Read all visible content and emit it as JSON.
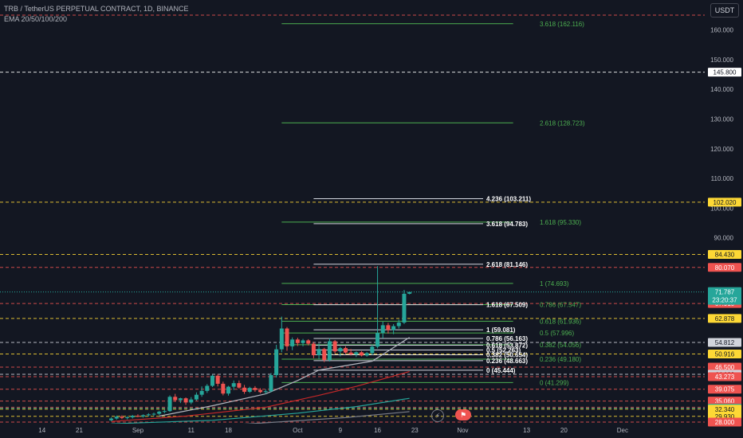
{
  "header": {
    "symbol": "TRB / TetherUS PERPETUAL CONTRACT, 1D, BINANCE",
    "indicator": "EMA 20/50/100/200"
  },
  "currency_button": "USDT",
  "icons": [
    "lightning-icon",
    "flag-icon"
  ],
  "colors": {
    "background": "#131722",
    "up": "#26a69a",
    "down": "#ef5350",
    "fib_green": "#4caf50",
    "fib_white": "#d1d4dc",
    "ema20": "#b2b5be",
    "ema50": "#c62828",
    "ema100": "#26a69a",
    "ema200": "#787b86"
  },
  "chart_data": {
    "type": "candlestick",
    "title": "TRB / TetherUS PERPETUAL CONTRACT, 1D, BINANCE",
    "x_start_date": "2023-08-10",
    "ylim": [
      28,
      165
    ],
    "y_ticks": [
      90,
      100,
      110,
      120,
      130,
      140,
      150,
      160
    ],
    "x_ticks": [
      {
        "label": "14",
        "date": "2023-08-14"
      },
      {
        "label": "21",
        "date": "2023-08-21"
      },
      {
        "label": "Sep",
        "date": "2023-09-01"
      },
      {
        "label": "11",
        "date": "2023-09-11"
      },
      {
        "label": "18",
        "date": "2023-09-18"
      },
      {
        "label": "Oct",
        "date": "2023-10-01"
      },
      {
        "label": "9",
        "date": "2023-10-09"
      },
      {
        "label": "16",
        "date": "2023-10-16"
      },
      {
        "label": "23",
        "date": "2023-10-23"
      },
      {
        "label": "Nov",
        "date": "2023-11-01"
      },
      {
        "label": "13",
        "date": "2023-11-13"
      },
      {
        "label": "20",
        "date": "2023-11-20"
      },
      {
        "label": "Dec",
        "date": "2023-12-01"
      }
    ],
    "candles": [
      {
        "date": "2023-08-27",
        "o": 28.6,
        "h": 29.6,
        "l": 28.3,
        "c": 29.2
      },
      {
        "date": "2023-08-28",
        "o": 29.2,
        "h": 30.2,
        "l": 28.8,
        "c": 29.8
      },
      {
        "date": "2023-08-29",
        "o": 29.8,
        "h": 30.3,
        "l": 29.0,
        "c": 29.4
      },
      {
        "date": "2023-08-30",
        "o": 29.4,
        "h": 30.0,
        "l": 28.9,
        "c": 29.6
      },
      {
        "date": "2023-08-31",
        "o": 29.6,
        "h": 30.4,
        "l": 29.2,
        "c": 30.1
      },
      {
        "date": "2023-09-01",
        "o": 30.1,
        "h": 30.6,
        "l": 29.6,
        "c": 29.9
      },
      {
        "date": "2023-09-02",
        "o": 29.9,
        "h": 30.6,
        "l": 29.5,
        "c": 30.3
      },
      {
        "date": "2023-09-03",
        "o": 30.3,
        "h": 31.0,
        "l": 29.9,
        "c": 30.6
      },
      {
        "date": "2023-09-04",
        "o": 30.6,
        "h": 31.2,
        "l": 30.0,
        "c": 30.8
      },
      {
        "date": "2023-09-05",
        "o": 30.8,
        "h": 31.8,
        "l": 30.4,
        "c": 31.5
      },
      {
        "date": "2023-09-06",
        "o": 31.5,
        "h": 32.2,
        "l": 31.0,
        "c": 31.7
      },
      {
        "date": "2023-09-07",
        "o": 31.7,
        "h": 37.0,
        "l": 31.4,
        "c": 36.5
      },
      {
        "date": "2023-09-08",
        "o": 36.5,
        "h": 37.5,
        "l": 34.8,
        "c": 35.4
      },
      {
        "date": "2023-09-09",
        "o": 35.4,
        "h": 36.2,
        "l": 34.4,
        "c": 36.0
      },
      {
        "date": "2023-09-10",
        "o": 36.0,
        "h": 36.3,
        "l": 33.8,
        "c": 34.6
      },
      {
        "date": "2023-09-11",
        "o": 34.6,
        "h": 36.4,
        "l": 34.0,
        "c": 35.6
      },
      {
        "date": "2023-09-12",
        "o": 35.6,
        "h": 38.0,
        "l": 35.2,
        "c": 37.2
      },
      {
        "date": "2023-09-13",
        "o": 37.2,
        "h": 40.0,
        "l": 36.5,
        "c": 38.5
      },
      {
        "date": "2023-09-14",
        "o": 38.5,
        "h": 40.8,
        "l": 37.8,
        "c": 40.2
      },
      {
        "date": "2023-09-15",
        "o": 40.2,
        "h": 44.0,
        "l": 39.8,
        "c": 43.6
      },
      {
        "date": "2023-09-16",
        "o": 43.6,
        "h": 44.2,
        "l": 40.0,
        "c": 40.9
      },
      {
        "date": "2023-09-17",
        "o": 40.9,
        "h": 41.6,
        "l": 37.0,
        "c": 37.6
      },
      {
        "date": "2023-09-18",
        "o": 37.6,
        "h": 40.2,
        "l": 36.9,
        "c": 39.9
      },
      {
        "date": "2023-09-19",
        "o": 39.9,
        "h": 42.0,
        "l": 38.8,
        "c": 41.1
      },
      {
        "date": "2023-09-20",
        "o": 41.1,
        "h": 42.0,
        "l": 39.2,
        "c": 39.6
      },
      {
        "date": "2023-09-21",
        "o": 39.6,
        "h": 40.5,
        "l": 37.5,
        "c": 38.2
      },
      {
        "date": "2023-09-22",
        "o": 38.2,
        "h": 39.9,
        "l": 37.8,
        "c": 39.5
      },
      {
        "date": "2023-09-23",
        "o": 39.5,
        "h": 40.1,
        "l": 38.2,
        "c": 38.8
      },
      {
        "date": "2023-09-24",
        "o": 38.8,
        "h": 39.4,
        "l": 37.7,
        "c": 38.1
      },
      {
        "date": "2023-09-25",
        "o": 38.1,
        "h": 39.0,
        "l": 37.5,
        "c": 38.4
      },
      {
        "date": "2023-09-26",
        "o": 38.4,
        "h": 44.5,
        "l": 38.0,
        "c": 43.8
      },
      {
        "date": "2023-09-27",
        "o": 43.8,
        "h": 54.0,
        "l": 43.0,
        "c": 52.5
      },
      {
        "date": "2023-09-28",
        "o": 52.5,
        "h": 63.5,
        "l": 51.5,
        "c": 59.5
      },
      {
        "date": "2023-09-29",
        "o": 59.5,
        "h": 60.0,
        "l": 52.0,
        "c": 53.5
      },
      {
        "date": "2023-09-30",
        "o": 53.5,
        "h": 56.5,
        "l": 52.2,
        "c": 55.8
      },
      {
        "date": "2023-10-01",
        "o": 55.8,
        "h": 56.4,
        "l": 53.6,
        "c": 54.6
      },
      {
        "date": "2023-10-02",
        "o": 54.6,
        "h": 56.0,
        "l": 53.5,
        "c": 55.5
      },
      {
        "date": "2023-10-03",
        "o": 55.5,
        "h": 55.9,
        "l": 53.8,
        "c": 54.4
      },
      {
        "date": "2023-10-04",
        "o": 54.4,
        "h": 55.0,
        "l": 49.5,
        "c": 50.5
      },
      {
        "date": "2023-10-05",
        "o": 50.5,
        "h": 54.5,
        "l": 49.2,
        "c": 52.6
      },
      {
        "date": "2023-10-06",
        "o": 52.6,
        "h": 53.0,
        "l": 48.2,
        "c": 48.9
      },
      {
        "date": "2023-10-07",
        "o": 48.9,
        "h": 56.2,
        "l": 48.4,
        "c": 55.2
      },
      {
        "date": "2023-10-08",
        "o": 55.2,
        "h": 55.6,
        "l": 51.0,
        "c": 51.8
      },
      {
        "date": "2023-10-09",
        "o": 51.8,
        "h": 53.4,
        "l": 50.1,
        "c": 52.9
      },
      {
        "date": "2023-10-10",
        "o": 52.9,
        "h": 53.5,
        "l": 50.9,
        "c": 51.4
      },
      {
        "date": "2023-10-11",
        "o": 51.4,
        "h": 52.6,
        "l": 50.4,
        "c": 50.8
      },
      {
        "date": "2023-10-12",
        "o": 50.8,
        "h": 51.8,
        "l": 49.9,
        "c": 51.5
      },
      {
        "date": "2023-10-13",
        "o": 51.5,
        "h": 51.9,
        "l": 50.1,
        "c": 50.4
      },
      {
        "date": "2023-10-14",
        "o": 50.4,
        "h": 51.6,
        "l": 50.0,
        "c": 51.2
      },
      {
        "date": "2023-10-15",
        "o": 51.2,
        "h": 54.0,
        "l": 50.6,
        "c": 53.4
      },
      {
        "date": "2023-10-16",
        "o": 53.4,
        "h": 80.5,
        "l": 52.8,
        "c": 58.0
      },
      {
        "date": "2023-10-17",
        "o": 58.0,
        "h": 61.8,
        "l": 56.2,
        "c": 60.6
      },
      {
        "date": "2023-10-18",
        "o": 60.6,
        "h": 61.4,
        "l": 57.8,
        "c": 59.0
      },
      {
        "date": "2023-10-19",
        "o": 59.0,
        "h": 61.0,
        "l": 57.6,
        "c": 60.3
      },
      {
        "date": "2023-10-20",
        "o": 60.3,
        "h": 62.5,
        "l": 59.5,
        "c": 61.5
      },
      {
        "date": "2023-10-21",
        "o": 61.5,
        "h": 72.5,
        "l": 61.0,
        "c": 71.2
      },
      {
        "date": "2023-10-22",
        "o": 71.2,
        "h": 71.9,
        "l": 71.0,
        "c": 71.79
      }
    ],
    "ema": [
      {
        "name": "EMA 20",
        "color": "#b2b5be",
        "points": [
          [
            "2023-09-05",
            30.0
          ],
          [
            "2023-09-15",
            33.5
          ],
          [
            "2023-09-25",
            37.5
          ],
          [
            "2023-10-01",
            42.0
          ],
          [
            "2023-10-05",
            45.5
          ],
          [
            "2023-10-10",
            47.0
          ],
          [
            "2023-10-15",
            48.5
          ],
          [
            "2023-10-22",
            56.5
          ]
        ]
      },
      {
        "name": "EMA 50",
        "color": "#c62828",
        "points": [
          [
            "2023-08-27",
            28.2
          ],
          [
            "2023-09-10",
            30.0
          ],
          [
            "2023-09-25",
            33.0
          ],
          [
            "2023-10-05",
            37.0
          ],
          [
            "2023-10-12",
            40.0
          ],
          [
            "2023-10-22",
            45.0
          ]
        ]
      },
      {
        "name": "EMA 100",
        "color": "#26a69a",
        "points": [
          [
            "2023-08-27",
            27.4
          ],
          [
            "2023-09-15",
            28.6
          ],
          [
            "2023-10-01",
            31.0
          ],
          [
            "2023-10-12",
            33.2
          ],
          [
            "2023-10-22",
            36.0
          ]
        ]
      },
      {
        "name": "EMA 200",
        "color": "#787b86",
        "points": [
          [
            "2023-08-27",
            26.5
          ],
          [
            "2023-09-20",
            27.2
          ],
          [
            "2023-10-10",
            29.5
          ],
          [
            "2023-10-22",
            31.5
          ]
        ]
      }
    ],
    "fib_green": {
      "start_date": "2023-09-28",
      "end_date": "2023-10-22",
      "levels": [
        {
          "label": "3.618 (162.116)",
          "price": 162.116
        },
        {
          "label": "2.618 (128.723)",
          "price": 128.723
        },
        {
          "label": "1.618 (95.330)",
          "price": 95.33
        },
        {
          "label": "1 (74.693)",
          "price": 74.693
        },
        {
          "label": "0.786 (67.547)",
          "price": 67.547
        },
        {
          "label": "0.618 (61.936)",
          "price": 61.936
        },
        {
          "label": "0.5 (57.996)",
          "price": 57.996
        },
        {
          "label": "0.382 (54.056)",
          "price": 54.056
        },
        {
          "label": "0.236 (49.180)",
          "price": 49.18
        },
        {
          "label": "0 (41.299)",
          "price": 41.299
        }
      ]
    },
    "fib_white": {
      "start_date": "2023-10-04",
      "end_date": "2023-10-19",
      "levels": [
        {
          "label": "4.236 (103.211)",
          "price": 103.211
        },
        {
          "label": "3.618 (94.783)",
          "price": 94.783
        },
        {
          "label": "2.618 (81.146)",
          "price": 81.146
        },
        {
          "label": "1.618 (67.509)",
          "price": 67.509
        },
        {
          "label": "1 (59.081)",
          "price": 59.081
        },
        {
          "label": "0.786 (56.163)",
          "price": 56.163
        },
        {
          "label": "0.618 (53.872)",
          "price": 53.872
        },
        {
          "label": "0.5 (52.263)",
          "price": 52.263
        },
        {
          "label": "0.382 (50.654)",
          "price": 50.654
        },
        {
          "label": "0.236 (48.663)",
          "price": 48.663
        },
        {
          "label": "0 (45.444)",
          "price": 45.444
        }
      ]
    },
    "horizontal_lines": [
      {
        "price": 165.0,
        "color": "#ef5350",
        "label": null
      },
      {
        "price": 145.8,
        "color": "#ffffff",
        "label": "145.800",
        "box_bg": "#ffffff",
        "box_fg": "#131722"
      },
      {
        "price": 102.02,
        "color": "#fdd835",
        "label": "102.020",
        "box_bg": "#fdd835",
        "box_fg": "#131722"
      },
      {
        "price": 84.43,
        "color": "#fdd835",
        "label": "84.430",
        "box_bg": "#fdd835",
        "box_fg": "#131722"
      },
      {
        "price": 80.07,
        "color": "#ef5350",
        "label": "80.070",
        "box_bg": "#ef5350",
        "box_fg": "#ffffff"
      },
      {
        "price": 67.91,
        "color": "#ef5350",
        "label": "67.910",
        "box_bg": "#ef5350",
        "box_fg": "#ffffff"
      },
      {
        "price": 62.878,
        "color": "#fdd835",
        "label": "62.878",
        "box_bg": "#fdd835",
        "box_fg": "#131722"
      },
      {
        "price": 54.812,
        "color": "#d1d4dc",
        "label": "54.812",
        "box_bg": "#d1d4dc",
        "box_fg": "#131722"
      },
      {
        "price": 50.916,
        "color": "#fdd835",
        "label": "50.916",
        "box_bg": "#fdd835",
        "box_fg": "#131722"
      },
      {
        "price": 46.5,
        "color": "#ef5350",
        "label": "46.500",
        "box_bg": "#ef5350",
        "box_fg": "#ffffff"
      },
      {
        "price": 44.1,
        "color": "#d1d4dc",
        "label": "44.100",
        "box_bg": "#d1d4dc",
        "box_fg": "#131722"
      },
      {
        "price": 43.273,
        "color": "#ef5350",
        "label": "43.273",
        "box_bg": "#ef5350",
        "box_fg": "#ffffff"
      },
      {
        "price": 39.075,
        "color": "#ef5350",
        "label": "39.075",
        "box_bg": "#ef5350",
        "box_fg": "#ffffff"
      },
      {
        "price": 35.06,
        "color": "#ef5350",
        "label": "35.060",
        "box_bg": "#ef5350",
        "box_fg": "#ffffff"
      },
      {
        "price": 33.0,
        "color": "#ef5350",
        "label": "33.000",
        "box_bg": "#ef5350",
        "box_fg": "#ffffff"
      },
      {
        "price": 32.664,
        "color": "#26a69a",
        "label": "32.664",
        "box_bg": "#26a69a",
        "box_fg": "#ffffff"
      },
      {
        "price": 32.34,
        "color": "#fdd835",
        "label": "32.340",
        "box_bg": "#fdd835",
        "box_fg": "#131722"
      },
      {
        "price": 29.93,
        "color": "#fdd835",
        "label": "29.930",
        "box_bg": "#fdd835",
        "box_fg": "#131722"
      },
      {
        "price": 28.0,
        "color": "#ef5350",
        "label": "28.000",
        "box_bg": "#ef5350",
        "box_fg": "#ffffff"
      }
    ],
    "last_price": {
      "price": 71.787,
      "label": "71.787",
      "countdown": "23:20:37",
      "color": "#26a69a"
    }
  }
}
